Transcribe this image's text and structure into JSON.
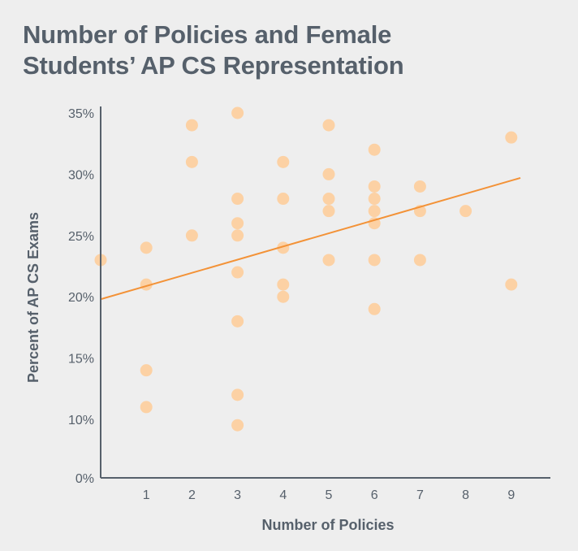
{
  "chart_data": {
    "type": "scatter",
    "title_lines": [
      "Number of Policies and Female",
      "Students’ AP CS Representation"
    ],
    "xlabel": "Number of Policies",
    "ylabel": "Percent of AP CS Exams",
    "x_ticks": [
      "1",
      "2",
      "3",
      "4",
      "5",
      "6",
      "7",
      "8",
      "9"
    ],
    "y_ticks": [
      "0%",
      "10%",
      "15%",
      "20%",
      "25%",
      "30%",
      "35%"
    ],
    "y_axis_note": "Broken y-axis: ticks 10%–35% evenly spaced, 0% at baseline",
    "xlim": [
      0,
      9.8
    ],
    "ylim": [
      0,
      35
    ],
    "grid": false,
    "colors": {
      "points": "#fcd1a4",
      "trend": "#f39237",
      "axis": "#56606b",
      "text": "#56606b"
    },
    "points": [
      {
        "x": 0,
        "y": 23
      },
      {
        "x": 1,
        "y": 24
      },
      {
        "x": 1,
        "y": 21
      },
      {
        "x": 1,
        "y": 14
      },
      {
        "x": 1,
        "y": 11
      },
      {
        "x": 2,
        "y": 34
      },
      {
        "x": 2,
        "y": 31
      },
      {
        "x": 2,
        "y": 25
      },
      {
        "x": 3,
        "y": 35
      },
      {
        "x": 3,
        "y": 28
      },
      {
        "x": 3,
        "y": 26
      },
      {
        "x": 3,
        "y": 25
      },
      {
        "x": 3,
        "y": 22
      },
      {
        "x": 3,
        "y": 18
      },
      {
        "x": 3,
        "y": 12
      },
      {
        "x": 3,
        "y": 9
      },
      {
        "x": 4,
        "y": 31
      },
      {
        "x": 4,
        "y": 28
      },
      {
        "x": 4,
        "y": 24
      },
      {
        "x": 4,
        "y": 21
      },
      {
        "x": 4,
        "y": 20
      },
      {
        "x": 5,
        "y": 34
      },
      {
        "x": 5,
        "y": 30
      },
      {
        "x": 5,
        "y": 28
      },
      {
        "x": 5,
        "y": 27
      },
      {
        "x": 5,
        "y": 23
      },
      {
        "x": 6,
        "y": 32
      },
      {
        "x": 6,
        "y": 29
      },
      {
        "x": 6,
        "y": 28
      },
      {
        "x": 6,
        "y": 27
      },
      {
        "x": 6,
        "y": 26
      },
      {
        "x": 6,
        "y": 23
      },
      {
        "x": 6,
        "y": 19
      },
      {
        "x": 7,
        "y": 29
      },
      {
        "x": 7,
        "y": 27
      },
      {
        "x": 7,
        "y": 23
      },
      {
        "x": 8,
        "y": 27
      },
      {
        "x": 9,
        "y": 33
      },
      {
        "x": 9,
        "y": 21
      }
    ],
    "trendline": {
      "x": [
        0,
        9.2
      ],
      "y": [
        19.8,
        29.7
      ]
    }
  }
}
